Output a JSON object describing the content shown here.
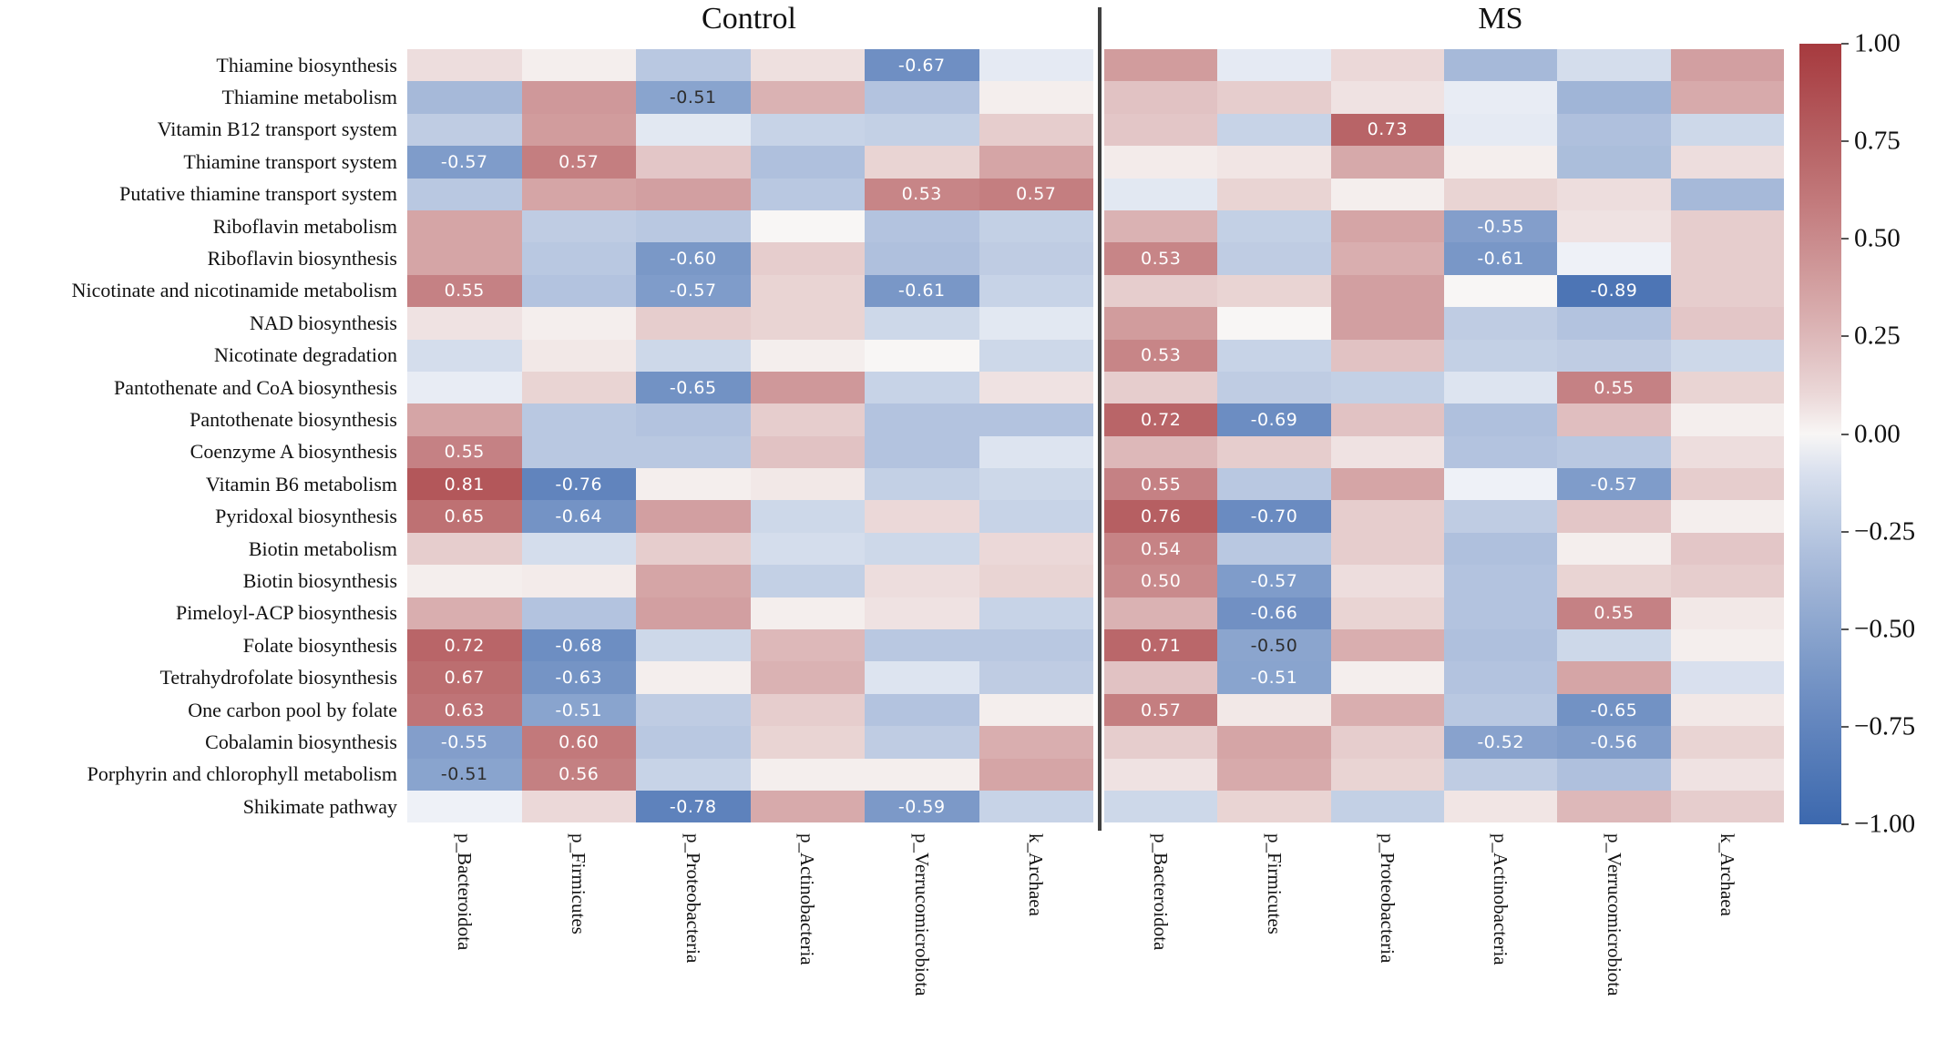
{
  "titles": {
    "control": "Control",
    "ms": "MS"
  },
  "colors": {
    "positive_max": "#a63a3e",
    "positive_zero": "#f8f6f5",
    "negative_zero": "#f6f7fa",
    "negative_max": "#3c68ae",
    "annotation_light": "#ffffff",
    "annotation_dark": "#2e2e2e",
    "divider": "#404040",
    "text": "#111111"
  },
  "colorbar": {
    "ticks": [
      "1.00",
      "0.75",
      "0.50",
      "0.25",
      "0.00",
      "−0.25",
      "−0.50",
      "−0.75",
      "−1.00"
    ],
    "max": 1.0,
    "min": -1.0
  },
  "chart_data": {
    "type": "heatmap",
    "value_range": [
      -1,
      1
    ],
    "annotation_threshold": 0.5,
    "legend_position": "right-colorbar",
    "rows": [
      "Thiamine biosynthesis",
      "Thiamine metabolism",
      "Vitamin B12 transport system",
      "Thiamine transport system",
      "Putative thiamine transport system",
      "Riboflavin metabolism",
      "Riboflavin biosynthesis",
      "Nicotinate and nicotinamide metabolism",
      "NAD biosynthesis",
      "Nicotinate degradation",
      "Pantothenate and CoA biosynthesis",
      "Pantothenate biosynthesis",
      "Coenzyme A biosynthesis",
      "Vitamin B6 metabolism",
      "Pyridoxal biosynthesis",
      "Biotin metabolism",
      "Biotin biosynthesis",
      "Pimeloyl-ACP biosynthesis",
      "Folate biosynthesis",
      "Tetrahydrofolate biosynthesis",
      "One carbon pool by folate",
      "Cobalamin biosynthesis",
      "Porphyrin and chlorophyll metabolism",
      "Shikimate pathway"
    ],
    "columns": [
      "p_Bacteroidota",
      "p_Firmicutes",
      "p_Proteobacteria",
      "p_Actinobacteria",
      "p_Verrucomicrobiota",
      "k_Archaea"
    ],
    "panels": [
      {
        "name": "Control",
        "values": [
          [
            0.08,
            0.02,
            -0.25,
            0.07,
            -0.67,
            -0.05
          ],
          [
            -0.35,
            0.42,
            -0.51,
            0.28,
            -0.28,
            0.02
          ],
          [
            -0.22,
            0.4,
            -0.06,
            -0.18,
            -0.2,
            0.15
          ],
          [
            -0.57,
            0.57,
            0.18,
            -0.3,
            0.12,
            0.35
          ],
          [
            -0.25,
            0.35,
            0.38,
            -0.25,
            0.53,
            0.57
          ],
          [
            0.35,
            -0.22,
            -0.25,
            0.0,
            -0.28,
            -0.2
          ],
          [
            0.35,
            -0.25,
            -0.6,
            0.15,
            -0.3,
            -0.22
          ],
          [
            0.55,
            -0.28,
            -0.57,
            0.12,
            -0.61,
            -0.18
          ],
          [
            0.06,
            0.02,
            0.15,
            0.12,
            -0.15,
            -0.06
          ],
          [
            -0.12,
            0.04,
            -0.15,
            0.02,
            0.0,
            -0.15
          ],
          [
            -0.04,
            0.12,
            -0.65,
            0.42,
            -0.18,
            0.06
          ],
          [
            0.35,
            -0.25,
            -0.28,
            0.15,
            -0.28,
            -0.28
          ],
          [
            0.55,
            -0.25,
            -0.25,
            0.2,
            -0.28,
            -0.08
          ],
          [
            0.81,
            -0.76,
            0.02,
            0.04,
            -0.2,
            -0.15
          ],
          [
            0.65,
            -0.64,
            0.38,
            -0.15,
            0.1,
            -0.18
          ],
          [
            0.15,
            -0.12,
            0.15,
            -0.12,
            -0.15,
            0.1
          ],
          [
            0.02,
            0.03,
            0.35,
            -0.2,
            0.08,
            0.12
          ],
          [
            0.3,
            -0.28,
            0.38,
            0.02,
            0.06,
            -0.18
          ],
          [
            0.72,
            -0.68,
            -0.15,
            0.25,
            -0.25,
            -0.25
          ],
          [
            0.67,
            -0.63,
            0.02,
            0.28,
            -0.08,
            -0.22
          ],
          [
            0.63,
            -0.51,
            -0.22,
            0.15,
            -0.28,
            0.02
          ],
          [
            -0.55,
            0.6,
            -0.25,
            0.12,
            -0.22,
            0.3
          ],
          [
            -0.51,
            0.56,
            -0.18,
            0.02,
            0.02,
            0.35
          ],
          [
            -0.02,
            0.1,
            -0.78,
            0.32,
            -0.59,
            -0.18
          ]
        ]
      },
      {
        "name": "MS",
        "values": [
          [
            0.4,
            -0.05,
            0.1,
            -0.35,
            -0.12,
            0.38
          ],
          [
            0.2,
            0.15,
            0.06,
            -0.04,
            -0.38,
            0.32
          ],
          [
            0.18,
            -0.18,
            0.73,
            -0.05,
            -0.3,
            -0.15
          ],
          [
            0.03,
            0.05,
            0.33,
            0.02,
            -0.32,
            0.08
          ],
          [
            -0.06,
            0.12,
            0.02,
            0.12,
            0.08,
            -0.35
          ],
          [
            0.28,
            -0.2,
            0.35,
            -0.55,
            0.06,
            0.15
          ],
          [
            0.53,
            -0.22,
            0.3,
            -0.61,
            -0.02,
            0.15
          ],
          [
            0.15,
            0.12,
            0.38,
            0.0,
            -0.89,
            0.15
          ],
          [
            0.4,
            0.0,
            0.38,
            -0.22,
            -0.28,
            0.18
          ],
          [
            0.53,
            -0.18,
            0.2,
            -0.2,
            -0.22,
            -0.15
          ],
          [
            0.15,
            -0.22,
            -0.2,
            -0.08,
            0.55,
            0.12
          ],
          [
            0.72,
            -0.69,
            0.2,
            -0.3,
            0.22,
            0.02
          ],
          [
            0.25,
            0.15,
            0.06,
            -0.28,
            -0.25,
            0.08
          ],
          [
            0.55,
            -0.25,
            0.35,
            -0.02,
            -0.57,
            0.15
          ],
          [
            0.76,
            -0.7,
            0.15,
            -0.22,
            0.18,
            0.02
          ],
          [
            0.54,
            -0.25,
            0.15,
            -0.3,
            0.02,
            0.18
          ],
          [
            0.5,
            -0.57,
            0.08,
            -0.28,
            0.12,
            0.15
          ],
          [
            0.28,
            -0.66,
            0.12,
            -0.28,
            0.55,
            0.04
          ],
          [
            0.71,
            -0.5,
            0.3,
            -0.3,
            -0.15,
            0.02
          ],
          [
            0.2,
            -0.51,
            0.02,
            -0.28,
            0.35,
            -0.1
          ],
          [
            0.57,
            0.04,
            0.3,
            -0.25,
            -0.65,
            0.04
          ],
          [
            0.15,
            0.35,
            0.15,
            -0.52,
            -0.56,
            0.12
          ],
          [
            0.06,
            0.32,
            0.12,
            -0.22,
            -0.3,
            0.06
          ],
          [
            -0.15,
            0.12,
            -0.2,
            0.05,
            0.25,
            0.15
          ]
        ]
      }
    ],
    "dark_text_cells": [
      [
        0,
        1,
        2
      ],
      [
        0,
        22,
        0
      ],
      [
        1,
        18,
        1
      ]
    ]
  }
}
